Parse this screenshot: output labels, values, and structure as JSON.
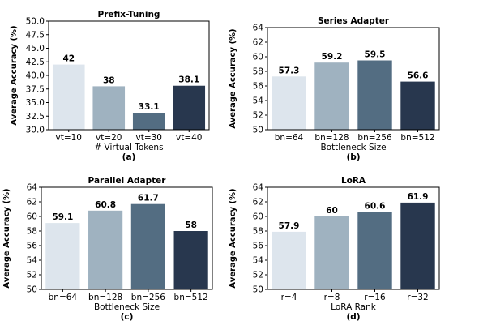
{
  "chart_data": [
    {
      "type": "bar",
      "title": "Prefix-Tuning",
      "categories": [
        "vt=10",
        "vt=20",
        "vt=30",
        "vt=40"
      ],
      "values": [
        42,
        38,
        33.1,
        38.1
      ],
      "value_labels": [
        "42",
        "38",
        "33.1",
        "38.1"
      ],
      "xlabel": "# Virtual Tokens",
      "ylabel": "Average Accuracy (%)",
      "ylim": [
        30.0,
        50.0
      ],
      "yticks": [
        "30.0",
        "32.5",
        "35.0",
        "37.5",
        "40.0",
        "42.5",
        "45.0",
        "47.5",
        "50.0"
      ],
      "caption": "(a)",
      "colors": [
        "#dde5ed",
        "#9fb2c0",
        "#536d82",
        "#28374e"
      ]
    },
    {
      "type": "bar",
      "title": "Series Adapter",
      "categories": [
        "bn=64",
        "bn=128",
        "bn=256",
        "bn=512"
      ],
      "values": [
        57.3,
        59.2,
        59.5,
        56.6
      ],
      "value_labels": [
        "57.3",
        "59.2",
        "59.5",
        "56.6"
      ],
      "xlabel": "Bottleneck Size",
      "ylabel": "Average Accuracy (%)",
      "ylim": [
        50,
        64
      ],
      "yticks": [
        "50",
        "52",
        "54",
        "56",
        "58",
        "60",
        "62",
        "64"
      ],
      "caption": "(b)",
      "colors": [
        "#dde5ed",
        "#9fb2c0",
        "#536d82",
        "#28374e"
      ]
    },
    {
      "type": "bar",
      "title": "Parallel Adapter",
      "categories": [
        "bn=64",
        "bn=128",
        "bn=256",
        "bn=512"
      ],
      "values": [
        59.1,
        60.8,
        61.7,
        58
      ],
      "value_labels": [
        "59.1",
        "60.8",
        "61.7",
        "58"
      ],
      "xlabel": "Bottleneck Size",
      "ylabel": "Average Accuracy (%)",
      "ylim": [
        50,
        64
      ],
      "yticks": [
        "50",
        "52",
        "54",
        "56",
        "58",
        "60",
        "62",
        "64"
      ],
      "caption": "(c)",
      "colors": [
        "#dde5ed",
        "#9fb2c0",
        "#536d82",
        "#28374e"
      ]
    },
    {
      "type": "bar",
      "title": "LoRA",
      "categories": [
        "r=4",
        "r=8",
        "r=16",
        "r=32"
      ],
      "values": [
        57.9,
        60,
        60.6,
        61.9
      ],
      "value_labels": [
        "57.9",
        "60",
        "60.6",
        "61.9"
      ],
      "xlabel": "LoRA Rank",
      "ylabel": "Average Accuracy (%)",
      "ylim": [
        50,
        64
      ],
      "yticks": [
        "50",
        "52",
        "54",
        "56",
        "58",
        "60",
        "62",
        "64"
      ],
      "caption": "(d)",
      "colors": [
        "#dde5ed",
        "#9fb2c0",
        "#536d82",
        "#28374e"
      ]
    }
  ]
}
